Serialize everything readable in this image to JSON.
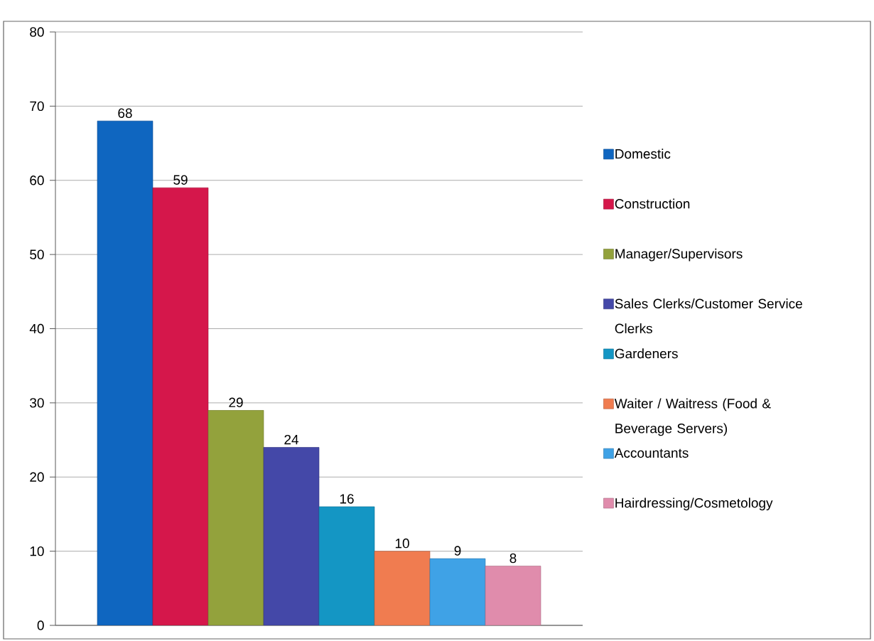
{
  "chart_data": {
    "type": "bar",
    "categories": [
      null
    ],
    "series": [
      {
        "name": "Domestic",
        "color": "#0f66c0",
        "values": [
          68
        ]
      },
      {
        "name": "Construction",
        "color": "#d5174b",
        "values": [
          59
        ]
      },
      {
        "name": "Manager/Supervisors",
        "color": "#93a23c",
        "values": [
          29
        ]
      },
      {
        "name": "Sales Clerks/Customer Service Clerks",
        "color": "#4448a8",
        "values": [
          24
        ]
      },
      {
        "name": "Gardeners",
        "color": "#1496c4",
        "values": [
          16
        ]
      },
      {
        "name": "Waiter / Waitress (Food & Beverage Servers)",
        "color": "#f07c50",
        "values": [
          10
        ]
      },
      {
        "name": "Accountants",
        "color": "#3fa2e6",
        "values": [
          9
        ]
      },
      {
        "name": "Hairdressing/Cosmetology",
        "color": "#e08cac",
        "values": [
          8
        ]
      }
    ],
    "ylim": [
      0,
      80
    ],
    "yticks": [
      0,
      10,
      20,
      30,
      40,
      50,
      60,
      70,
      80
    ],
    "grid": "y",
    "legend": "right",
    "data_labels": true
  }
}
